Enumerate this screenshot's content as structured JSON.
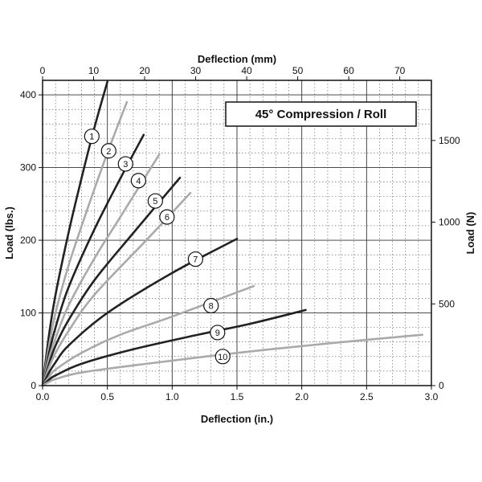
{
  "chart_data": {
    "type": "line",
    "title": "45° Compression / Roll",
    "xlabel": "Deflection (in.)",
    "ylabel": "Load (lbs.)",
    "x2label": "Deflection (mm)",
    "y2label": "Load (N)",
    "xlim": [
      0,
      3.0
    ],
    "ylim": [
      0,
      420
    ],
    "x2lim": [
      0,
      76.2
    ],
    "y2lim": [
      0,
      1868
    ],
    "x_ticks": [
      "0.0",
      "0.5",
      "1.0",
      "1.5",
      "2.0",
      "2.5",
      "3.0"
    ],
    "y_ticks": [
      "0",
      "100",
      "200",
      "300",
      "400"
    ],
    "x2_ticks": [
      "0",
      "10",
      "20",
      "30",
      "40",
      "50",
      "60",
      "70"
    ],
    "y2_ticks": [
      "0",
      "500",
      "1000",
      "1500"
    ],
    "grid": true,
    "series": [
      {
        "name": "1",
        "color": "#222222",
        "x": [
          0,
          0.05,
          0.1,
          0.2,
          0.3,
          0.4,
          0.5
        ],
        "y": [
          0,
          70,
          125,
          210,
          285,
          355,
          418
        ]
      },
      {
        "name": "2",
        "color": "#aaaaaa",
        "x": [
          0,
          0.05,
          0.1,
          0.2,
          0.35,
          0.5,
          0.65
        ],
        "y": [
          0,
          55,
          100,
          165,
          245,
          320,
          390
        ]
      },
      {
        "name": "3",
        "color": "#222222",
        "x": [
          0,
          0.05,
          0.1,
          0.2,
          0.4,
          0.6,
          0.78
        ],
        "y": [
          0,
          45,
          80,
          135,
          215,
          285,
          345
        ]
      },
      {
        "name": "4",
        "color": "#aaaaaa",
        "x": [
          0,
          0.05,
          0.1,
          0.2,
          0.4,
          0.6,
          0.9
        ],
        "y": [
          0,
          38,
          65,
          110,
          175,
          232,
          318
        ]
      },
      {
        "name": "5",
        "color": "#222222",
        "x": [
          0,
          0.05,
          0.1,
          0.2,
          0.4,
          0.7,
          1.06
        ],
        "y": [
          0,
          30,
          55,
          90,
          145,
          210,
          286
        ]
      },
      {
        "name": "6",
        "color": "#aaaaaa",
        "x": [
          0,
          0.05,
          0.1,
          0.2,
          0.4,
          0.8,
          1.14
        ],
        "y": [
          0,
          25,
          45,
          75,
          125,
          200,
          265
        ]
      },
      {
        "name": "7",
        "color": "#222222",
        "x": [
          0,
          0.05,
          0.1,
          0.2,
          0.5,
          1.0,
          1.5
        ],
        "y": [
          0,
          18,
          32,
          55,
          100,
          155,
          202
        ]
      },
      {
        "name": "8",
        "color": "#aaaaaa",
        "x": [
          0,
          0.05,
          0.1,
          0.3,
          0.6,
          1.0,
          1.63
        ],
        "y": [
          0,
          12,
          22,
          45,
          70,
          95,
          137
        ]
      },
      {
        "name": "9",
        "color": "#222222",
        "x": [
          0,
          0.05,
          0.1,
          0.3,
          0.7,
          1.2,
          1.6,
          2.03
        ],
        "y": [
          0,
          8,
          14,
          30,
          50,
          70,
          85,
          104
        ]
      },
      {
        "name": "10",
        "color": "#aaaaaa",
        "x": [
          0,
          0.05,
          0.1,
          0.3,
          0.8,
          1.5,
          2.2,
          2.93
        ],
        "y": [
          0,
          5,
          9,
          18,
          30,
          45,
          58,
          70
        ]
      }
    ],
    "markers": [
      {
        "label": "1",
        "x": 0.38,
        "y": 343
      },
      {
        "label": "2",
        "x": 0.51,
        "y": 323
      },
      {
        "label": "3",
        "x": 0.64,
        "y": 305
      },
      {
        "name": "4",
        "label": "4",
        "x": 0.74,
        "y": 282
      },
      {
        "label": "5",
        "x": 0.87,
        "y": 254
      },
      {
        "label": "6",
        "x": 0.96,
        "y": 232
      },
      {
        "label": "7",
        "x": 1.18,
        "y": 174
      },
      {
        "label": "8",
        "x": 1.3,
        "y": 110
      },
      {
        "label": "9",
        "x": 1.35,
        "y": 73
      },
      {
        "label": "10",
        "x": 1.39,
        "y": 40
      }
    ]
  }
}
